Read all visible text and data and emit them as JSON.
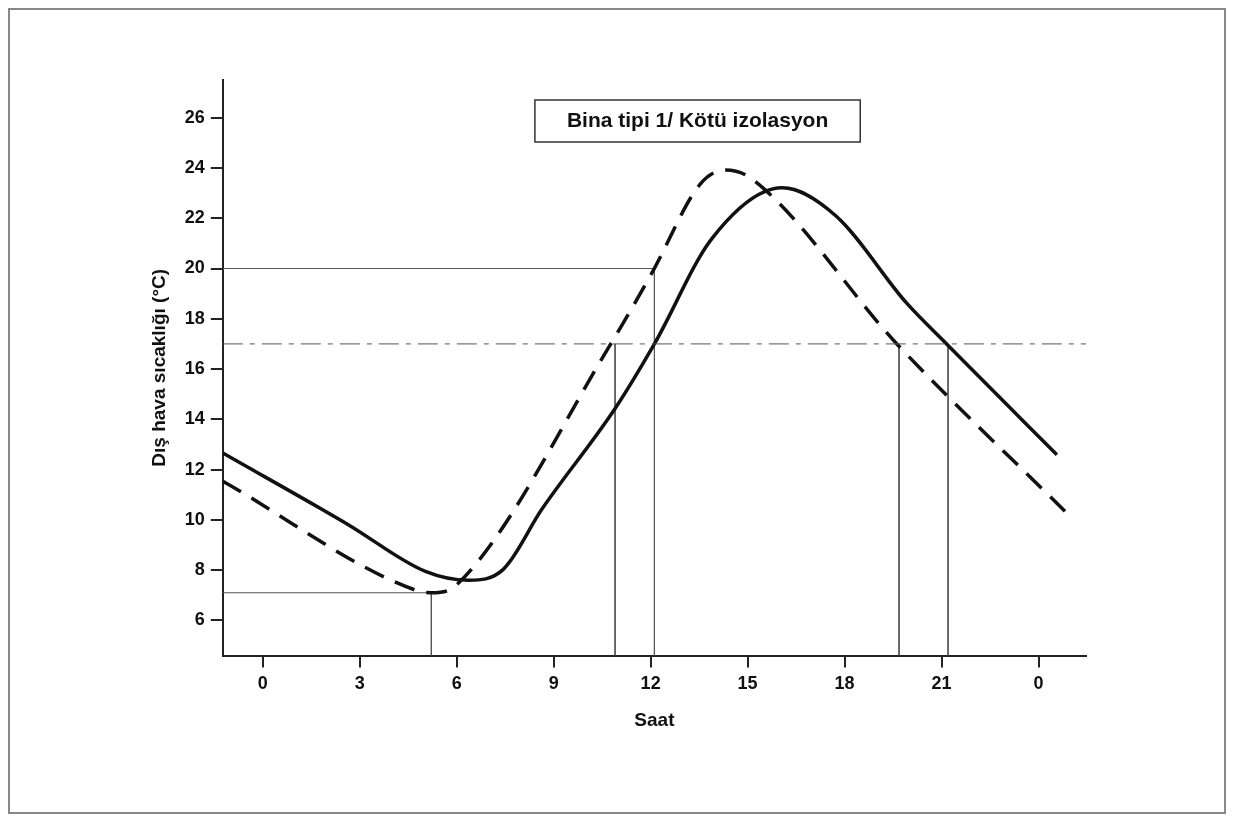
{
  "chart_data": {
    "type": "line",
    "title": "Bina tipi 1/ Kötü izolasyon",
    "xlabel": "Saat",
    "ylabel": "Dış hava sıcaklığı (°C)",
    "xlim": [
      "--01-31T22:46",
      "--02-02T01:28"
    ],
    "xticks": [
      {
        "value": "--02-01T00:00",
        "label": "0"
      },
      {
        "value": "--02-01T03:00",
        "label": "3"
      },
      {
        "value": "--02-01T06:00",
        "label": "6"
      },
      {
        "value": "--02-01T09:00",
        "label": "9"
      },
      {
        "value": "--02-01T12:00",
        "label": "12"
      },
      {
        "value": "--02-01T15:00",
        "label": "15"
      },
      {
        "value": "--02-01T18:00",
        "label": "18"
      },
      {
        "value": "--02-01T21:00",
        "label": "21"
      },
      {
        "value": "--02-02T00:00",
        "label": "0"
      }
    ],
    "ylim": [
      4.6,
      27.5
    ],
    "yticks": [
      6,
      8,
      10,
      12,
      14,
      16,
      18,
      20,
      22,
      24,
      26
    ],
    "grid": false,
    "legend": false,
    "marker": "none",
    "series": [
      {
        "color": "#111111",
        "line_style": "solid",
        "x": [
          "--01-31T22:46",
          "--02-01T02:38",
          "--02-01T05:02",
          "--02-01T06:22",
          "--02-01T07:26",
          "--02-01T08:38",
          "--02-01T10:55",
          "--02-01T12:07",
          "--02-01T13:54",
          "--02-01T16:04",
          "--02-01T17:44",
          "--02-01T19:54",
          "--02-01T21:12",
          "--02-02T00:34"
        ],
        "values": [
          12.66,
          9.82,
          7.95,
          7.6,
          8.02,
          10.42,
          14.46,
          17.0,
          21.2,
          23.21,
          22.09,
          18.65,
          16.94,
          12.59
        ]
      },
      {
        "color": "#111111",
        "line_style": "dashed",
        "x": [
          "--01-31T22:46",
          "--02-01T04:48",
          "--02-01T05:13",
          "--02-01T06:00",
          "--02-01T10:44",
          "--02-01T12:03",
          "--02-01T13:32",
          "--02-01T14:19",
          "--02-01T15:06",
          "--02-01T19:40",
          "--02-02T00:49"
        ],
        "values": [
          11.54,
          7.17,
          7.1,
          7.42,
          16.93,
          19.85,
          23.36,
          23.92,
          23.59,
          16.93,
          10.34
        ]
      },
      {
        "color": "#555555",
        "line_style": "solid",
        "x": [
          "--01-31T22:46",
          "--02-01T12:07",
          "--02-01T12:07"
        ],
        "values": [
          20,
          20,
          4.6
        ]
      },
      {
        "color": "#555555",
        "line_style": "solid",
        "x": [
          "--01-31T22:46",
          "--02-01T05:13",
          "--02-01T05:13"
        ],
        "values": [
          7.1,
          7.1,
          4.6
        ]
      },
      {
        "color": "#555555",
        "line_style": "solid",
        "x": [
          "--02-01T10:54",
          "--02-01T10:54"
        ],
        "values": [
          17,
          4.6
        ]
      },
      {
        "color": "#555555",
        "line_style": "solid",
        "x": [
          "--02-01T19:41",
          "--02-01T19:41"
        ],
        "values": [
          17,
          4.6
        ]
      },
      {
        "color": "#555555",
        "line_style": "solid",
        "x": [
          "--02-01T21:12",
          "--02-01T21:12"
        ],
        "values": [
          17,
          4.6
        ]
      }
    ],
    "ref_lines": [
      {
        "axis": "y",
        "value": 17,
        "color": "#555555",
        "line_style": "dashed"
      }
    ]
  }
}
